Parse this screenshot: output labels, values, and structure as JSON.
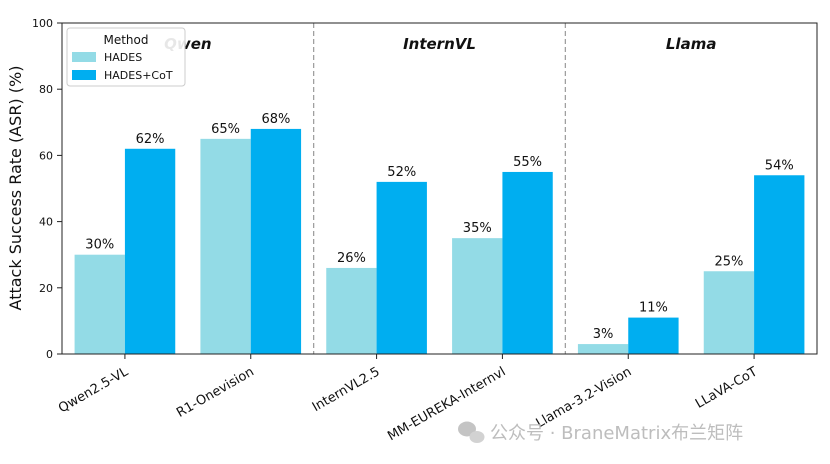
{
  "chart_data": {
    "type": "bar",
    "ylabel": "Attack Success Rate (ASR) (%)",
    "xlabel": "",
    "ylim": [
      0,
      100
    ],
    "yticks": [
      0,
      20,
      40,
      60,
      80,
      100
    ],
    "grid": false,
    "categories": [
      "Qwen2.5-VL",
      "R1-Onevision",
      "InternVL2.5",
      "MM-EUREKA-Internvl",
      "Llama-3.2-Vision",
      "LLaVA-CoT"
    ],
    "series": [
      {
        "name": "HADES",
        "color": "#93dbe6",
        "values": [
          30,
          65,
          26,
          35,
          3,
          25
        ],
        "labels": [
          "30%",
          "65%",
          "26%",
          "35%",
          "3%",
          "25%"
        ]
      },
      {
        "name": "HADES+CoT",
        "color": "#00aef0",
        "values": [
          62,
          68,
          52,
          55,
          11,
          54
        ],
        "labels": [
          "62%",
          "68%",
          "52%",
          "55%",
          "11%",
          "54%"
        ]
      }
    ],
    "groups": [
      {
        "title": "Qwen",
        "categories": [
          "Qwen2.5-VL",
          "R1-Onevision"
        ]
      },
      {
        "title": "InternVL",
        "categories": [
          "InternVL2.5",
          "MM-EUREKA-Internvl"
        ]
      },
      {
        "title": "Llama",
        "categories": [
          "Llama-3.2-Vision",
          "LLaVA-CoT"
        ]
      }
    ],
    "group_separators": "dashed vertical lines",
    "legend": {
      "title": "Method",
      "placement": "top-left"
    }
  },
  "watermark": {
    "text": "公众号 · BraneMatrix布兰矩阵",
    "icon": "wechat-icon"
  }
}
